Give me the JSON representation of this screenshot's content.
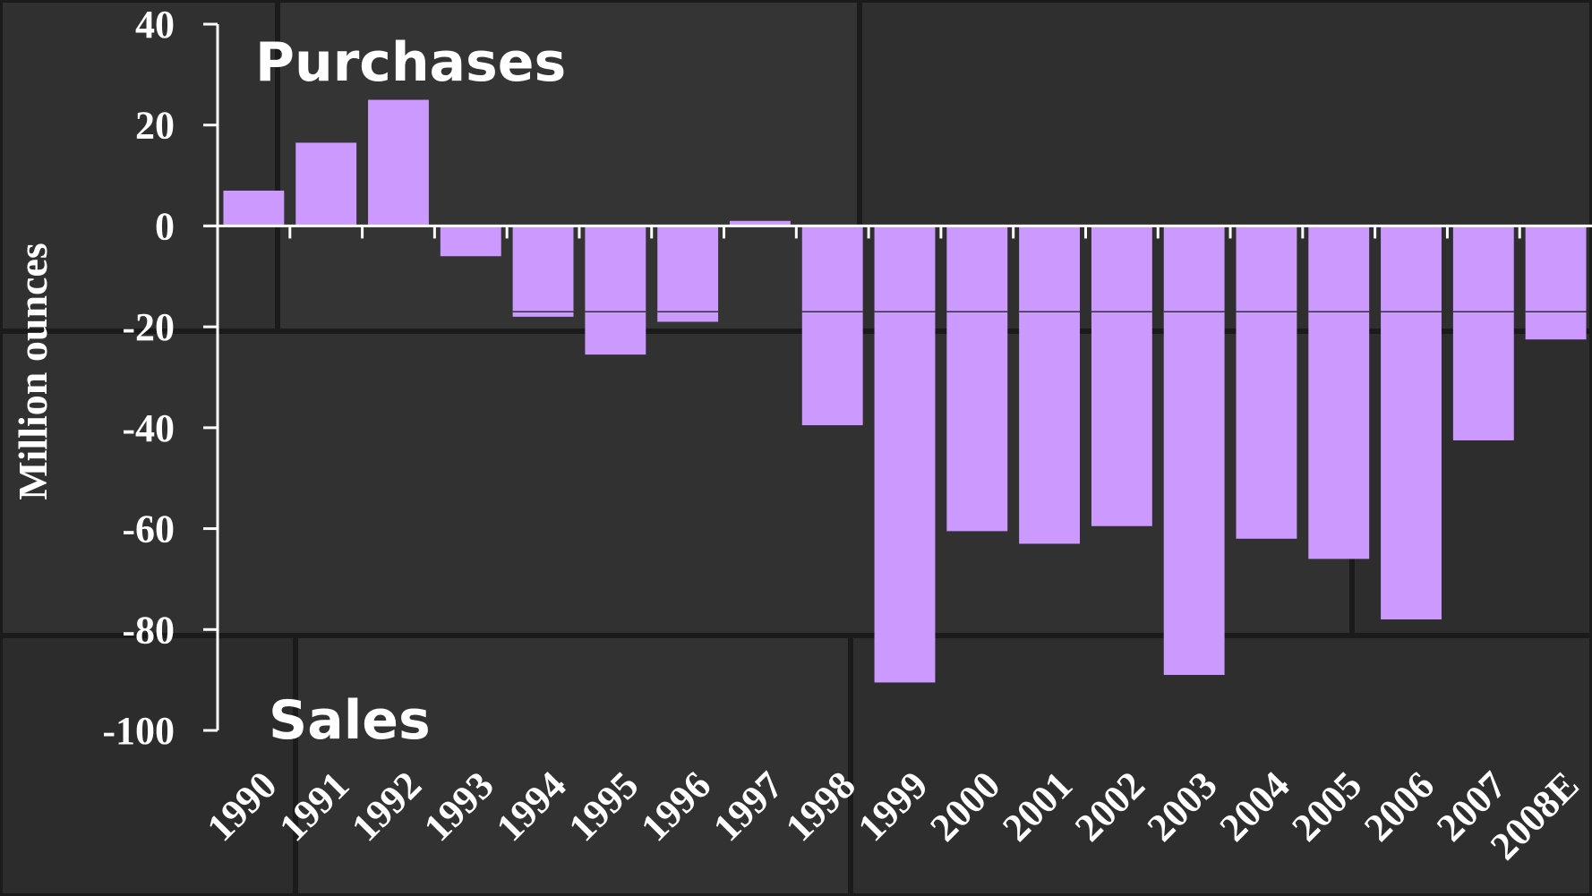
{
  "colors": {
    "bar": "#cc99ff",
    "background": "#2b2b2b",
    "axis": "#ffffff",
    "text": "#ffffff",
    "inner_line": "#333333"
  },
  "chart_data": {
    "type": "bar",
    "title": "",
    "xlabel": "",
    "ylabel": "Million ounces",
    "ylim": [
      -100,
      40
    ],
    "yticks": [
      40,
      20,
      0,
      -20,
      -40,
      -60,
      -80,
      -100
    ],
    "grid": false,
    "categories": [
      "1990",
      "1991",
      "1992",
      "1993",
      "1994",
      "1995",
      "1996",
      "1997",
      "1998",
      "1999",
      "2000",
      "2001",
      "2002",
      "2003",
      "2004",
      "2005",
      "2006",
      "2007",
      "2008E"
    ],
    "values": [
      7,
      16.5,
      25,
      -6,
      -18,
      -25.5,
      -19,
      1,
      -39.5,
      -90.5,
      -60.5,
      -63,
      -59.5,
      -89,
      -62,
      -66,
      -78,
      -42.5,
      -22.5
    ],
    "reference_line_value": -17,
    "annotations": [
      "Purchases",
      "Sales"
    ]
  }
}
